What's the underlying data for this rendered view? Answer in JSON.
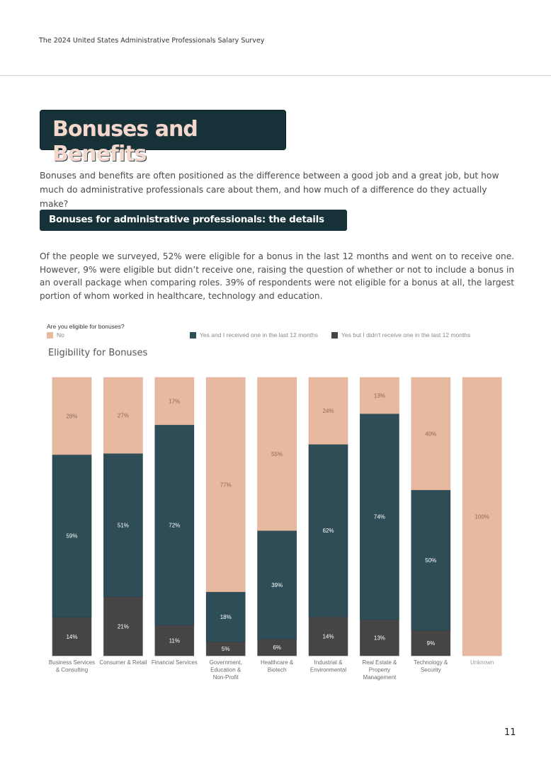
{
  "header": {
    "survey_title": "The 2024 United States Administrative Professionals Salary Survey"
  },
  "section": {
    "title": "Bonuses and Benefits",
    "intro": "Bonuses and benefits are often positioned as the difference between a good job and a great job, but how much do administrative professionals care about them, and how much of a difference do they actually make?",
    "subheading": "Bonuses for administrative professionals: the details",
    "paragraph": "Of the people we surveyed, 52% were eligible for a bonus in the last 12 months and went on to receive one. However, 9% were eligible but didn’t receive one, raising the question of whether or not to include a bonus in an overall package when comparing roles. 39% of respondents were not eligible for a bonus at all, the largest portion of whom worked in healthcare, technology and education."
  },
  "legend": {
    "question": "Are you eligible for bonuses?",
    "items": [
      {
        "label": "No",
        "color": "#e6b9a0"
      },
      {
        "label": "Yes and I received one in the last 12 months",
        "color": "#2e4d56"
      },
      {
        "label": "Yes but I didn't receive one in the last 12 months",
        "color": "#474446"
      }
    ]
  },
  "chart_data": {
    "type": "bar",
    "stacked": true,
    "normalized": true,
    "title": "Eligibility for Bonuses",
    "categories": [
      [
        "Business Services",
        "& Consulting"
      ],
      [
        "Consumer & Retail"
      ],
      [
        "Financial Services"
      ],
      [
        "Government,",
        "Education &",
        "Non-Profit"
      ],
      [
        "Healthcare &",
        "Biotech"
      ],
      [
        "Industrial &",
        "Environmental"
      ],
      [
        "Real Estate &",
        "Property",
        "Management"
      ],
      [
        "Technology &",
        "Security"
      ],
      [
        "Unknown"
      ]
    ],
    "series": [
      {
        "name": "Yes but I didn't receive one in the last 12 months",
        "color": "#474446",
        "values": [
          14,
          21,
          11,
          5,
          6,
          14,
          13,
          9,
          0
        ],
        "labels": [
          "14%",
          "21%",
          "11%",
          "5%",
          "6%",
          "14%",
          "13%",
          "9%",
          ""
        ]
      },
      {
        "name": "Yes and I received one in the last 12 months",
        "color": "#2e4d56",
        "values": [
          59,
          51,
          72,
          18,
          39,
          62,
          74,
          50,
          0
        ],
        "labels": [
          "59%",
          "51%",
          "72%",
          "18%",
          "39%",
          "62%",
          "74%",
          "50%",
          ""
        ]
      },
      {
        "name": "No",
        "color": "#e6b9a0",
        "values": [
          28,
          27,
          17,
          77,
          55,
          24,
          13,
          40,
          100
        ],
        "labels": [
          "28%",
          "27%",
          "17%",
          "77%",
          "55%",
          "24%",
          "13%",
          "40%",
          "100%"
        ]
      }
    ],
    "label_colors": {
      "#474446": "#ffffff",
      "#2e4d56": "#ffffff",
      "#e6b9a0": "#8c6a58"
    }
  },
  "footer": {
    "page_number": "11"
  }
}
